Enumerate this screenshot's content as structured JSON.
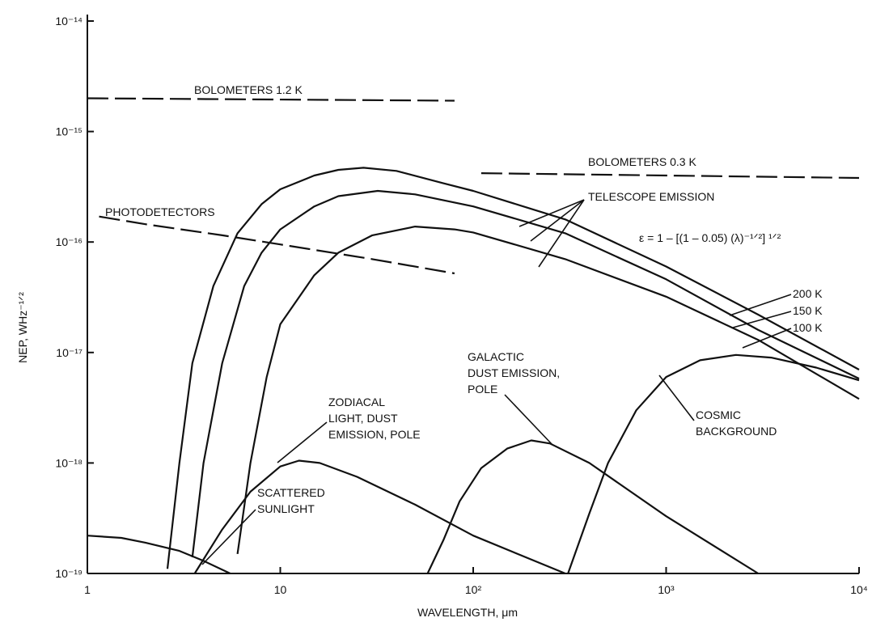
{
  "chart_data": {
    "type": "line",
    "title": "",
    "xlabel": "WAVELENGTH, μm",
    "ylabel": "NEP, WHz⁻¹ᐟ²",
    "xscale": "log",
    "yscale": "log",
    "xlim": [
      1,
      10000
    ],
    "ylim": [
      1e-19,
      1e-14
    ],
    "grid": false,
    "x_ticks": [
      {
        "value": 1,
        "label": "1"
      },
      {
        "value": 10,
        "label": "10"
      },
      {
        "value": 100,
        "label": "10²"
      },
      {
        "value": 1000,
        "label": "10³"
      },
      {
        "value": 10000,
        "label": "10⁴"
      }
    ],
    "y_ticks": [
      {
        "value": 1e-14,
        "label": "10⁻¹⁴"
      },
      {
        "value": 1e-15,
        "label": "10⁻¹⁵"
      },
      {
        "value": 1e-16,
        "label": "10⁻¹⁶"
      },
      {
        "value": 1e-17,
        "label": "10⁻¹⁷"
      },
      {
        "value": 1e-18,
        "label": "10⁻¹⁸"
      },
      {
        "value": 1e-19,
        "label": "10⁻¹⁹"
      }
    ],
    "series": [
      {
        "key": "bolometers-1-2k",
        "dashed": true,
        "points": [
          [
            1,
            2e-15
          ],
          [
            80,
            1.9e-15
          ]
        ]
      },
      {
        "key": "bolometers-0-3k",
        "dashed": true,
        "points": [
          [
            110,
            4.2e-16
          ],
          [
            10000,
            3.8e-16
          ]
        ]
      },
      {
        "key": "photodetectors",
        "dashed": true,
        "points": [
          [
            1.15,
            1.7e-16
          ],
          [
            2,
            1.45e-16
          ],
          [
            5,
            1.15e-16
          ],
          [
            10,
            9.5e-17
          ],
          [
            30,
            7e-17
          ],
          [
            80,
            5.2e-17
          ]
        ]
      },
      {
        "key": "telescope-200k",
        "dashed": false,
        "points": [
          [
            2.6,
            1.1e-19
          ],
          [
            3,
            1e-18
          ],
          [
            3.5,
            8e-18
          ],
          [
            4.5,
            4e-17
          ],
          [
            6,
            1.2e-16
          ],
          [
            8,
            2.2e-16
          ],
          [
            10,
            3e-16
          ],
          [
            15,
            4e-16
          ],
          [
            20,
            4.5e-16
          ],
          [
            27,
            4.7e-16
          ],
          [
            40,
            4.4e-16
          ],
          [
            70,
            3.4e-16
          ],
          [
            100,
            2.9e-16
          ],
          [
            300,
            1.6e-16
          ],
          [
            1000,
            6e-17
          ],
          [
            3000,
            2.2e-17
          ],
          [
            10000,
            7e-18
          ]
        ]
      },
      {
        "key": "telescope-150k",
        "dashed": false,
        "points": [
          [
            3.5,
            1.4e-19
          ],
          [
            4,
            1e-18
          ],
          [
            5,
            8e-18
          ],
          [
            6.5,
            4e-17
          ],
          [
            8,
            8e-17
          ],
          [
            10,
            1.3e-16
          ],
          [
            15,
            2.1e-16
          ],
          [
            20,
            2.6e-16
          ],
          [
            32,
            2.9e-16
          ],
          [
            50,
            2.7e-16
          ],
          [
            100,
            2.1e-16
          ],
          [
            300,
            1.2e-16
          ],
          [
            1000,
            4.6e-17
          ],
          [
            3000,
            1.6e-17
          ],
          [
            10000,
            5.8e-18
          ]
        ]
      },
      {
        "key": "telescope-100k",
        "dashed": false,
        "points": [
          [
            6,
            1.5e-19
          ],
          [
            7,
            1e-18
          ],
          [
            8.5,
            6e-18
          ],
          [
            10,
            1.8e-17
          ],
          [
            15,
            5e-17
          ],
          [
            20,
            8e-17
          ],
          [
            30,
            1.15e-16
          ],
          [
            50,
            1.38e-16
          ],
          [
            80,
            1.3e-16
          ],
          [
            100,
            1.22e-16
          ],
          [
            300,
            7e-17
          ],
          [
            1000,
            3.2e-17
          ],
          [
            3000,
            1.3e-17
          ],
          [
            10000,
            3.8e-18
          ]
        ]
      },
      {
        "key": "zodiacal",
        "dashed": false,
        "points": [
          [
            3.6,
            1e-19
          ],
          [
            5,
            2.5e-19
          ],
          [
            7,
            5.5e-19
          ],
          [
            10,
            9.3e-19
          ],
          [
            12.5,
            1.05e-18
          ],
          [
            16,
            1e-18
          ],
          [
            25,
            7.5e-19
          ],
          [
            50,
            4.2e-19
          ],
          [
            100,
            2.2e-19
          ],
          [
            300,
            1e-19
          ]
        ]
      },
      {
        "key": "scattered-sunlight",
        "dashed": false,
        "points": [
          [
            1,
            2.2e-19
          ],
          [
            1.5,
            2.1e-19
          ],
          [
            2,
            1.9e-19
          ],
          [
            3,
            1.6e-19
          ],
          [
            4,
            1.3e-19
          ],
          [
            5.5,
            1e-19
          ]
        ]
      },
      {
        "key": "galactic-dust",
        "dashed": false,
        "points": [
          [
            58,
            1e-19
          ],
          [
            70,
            2e-19
          ],
          [
            85,
            4.5e-19
          ],
          [
            110,
            9e-19
          ],
          [
            150,
            1.35e-18
          ],
          [
            200,
            1.6e-18
          ],
          [
            250,
            1.5e-18
          ],
          [
            400,
            1e-18
          ],
          [
            1000,
            3.3e-19
          ],
          [
            3000,
            1e-19
          ]
        ]
      },
      {
        "key": "cosmic-background",
        "dashed": false,
        "points": [
          [
            310,
            1e-19
          ],
          [
            400,
            3.5e-19
          ],
          [
            500,
            1e-18
          ],
          [
            700,
            3e-18
          ],
          [
            1000,
            6e-18
          ],
          [
            1500,
            8.5e-18
          ],
          [
            2300,
            9.5e-18
          ],
          [
            3500,
            9e-18
          ],
          [
            6000,
            7.3e-18
          ],
          [
            10000,
            5.6e-18
          ]
        ]
      }
    ]
  },
  "annotations": {
    "bolometers_12k": "BOLOMETERS 1.2 K",
    "bolometers_03k": "BOLOMETERS 0.3 K",
    "photodetectors": "PHOTODETECTORS",
    "telescope_emission": "TELESCOPE EMISSION",
    "emissivity_formula": "ε = 1 – [(1 – 0.05) (λ)⁻¹ᐟ²] ¹ᐟ²",
    "temp_200k": "200 K",
    "temp_150k": "150 K",
    "temp_100k": "100 K",
    "galactic_dust": [
      "GALACTIC",
      "DUST EMISSION,",
      "POLE"
    ],
    "zodiacal": [
      "ZODIACAL",
      "LIGHT, DUST",
      "EMISSION, POLE"
    ],
    "cosmic_background": [
      "COSMIC",
      "BACKGROUND"
    ],
    "scattered_sunlight": [
      "SCATTERED",
      "SUNLIGHT"
    ]
  }
}
